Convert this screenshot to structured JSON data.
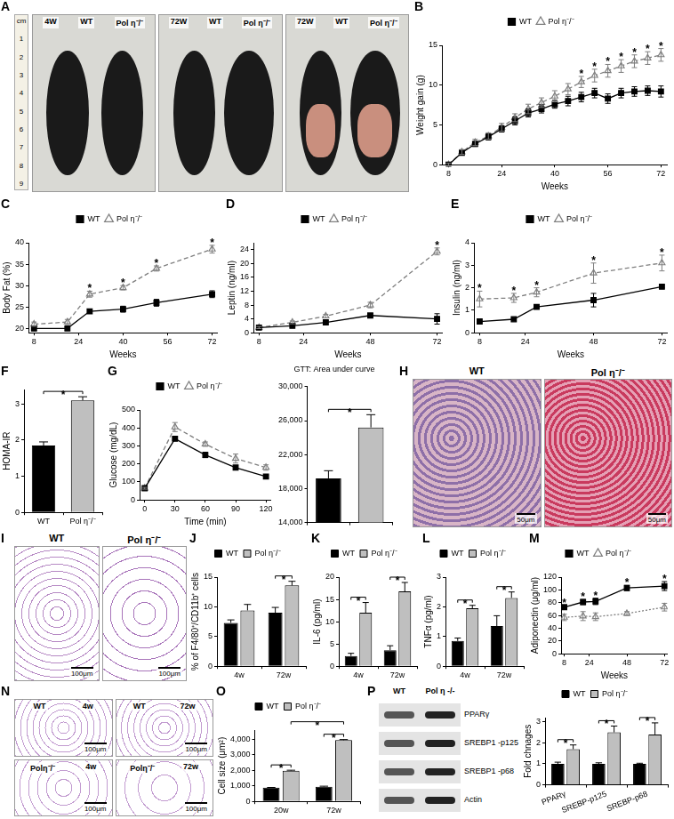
{
  "chart_data": [
    {
      "panel": "B",
      "type": "line",
      "x_label": "Weeks",
      "y_label": "Weight gain (g)",
      "x": [
        8,
        12,
        16,
        20,
        24,
        28,
        32,
        36,
        40,
        44,
        48,
        52,
        56,
        60,
        64,
        68,
        72
      ],
      "series": [
        {
          "name": "WT",
          "color": "#000000",
          "marker": "square",
          "line_style": "solid",
          "values": [
            0,
            1.5,
            2.6,
            3.5,
            4.5,
            5.5,
            6.5,
            7,
            7.6,
            8,
            8.5,
            9,
            8.3,
            9,
            9.2,
            9.3,
            9.2
          ],
          "errors": [
            0.2,
            0.3,
            0.3,
            0.4,
            0.4,
            0.5,
            0.5,
            0.5,
            0.5,
            0.6,
            0.6,
            0.6,
            0.6,
            0.6,
            0.6,
            0.6,
            0.7
          ]
        },
        {
          "name": "Pol η⁻/⁻",
          "color": "#7f7f7f",
          "marker": "triangle",
          "line_style": "dashed",
          "values": [
            0,
            1.6,
            2.8,
            3.6,
            4.7,
            5.9,
            7,
            7.8,
            8.6,
            9.5,
            10.4,
            11.2,
            11.8,
            12.4,
            13,
            13.4,
            13.8
          ],
          "errors": [
            0.2,
            0.3,
            0.4,
            0.4,
            0.5,
            0.5,
            0.6,
            0.6,
            0.7,
            0.7,
            0.7,
            0.8,
            0.8,
            0.8,
            0.8,
            0.8,
            0.8
          ]
        }
      ],
      "xlim": [
        6,
        74
      ],
      "xticks": [
        8,
        24,
        40,
        56,
        72
      ],
      "ylim": [
        0,
        15
      ],
      "yticks": [
        0,
        5,
        10,
        15
      ],
      "grid": false,
      "legend": "top",
      "annotations": [
        {
          "x": 48,
          "text": "*"
        },
        {
          "x": 52,
          "text": "*"
        },
        {
          "x": 56,
          "text": "*"
        },
        {
          "x": 60,
          "text": "*"
        },
        {
          "x": 64,
          "text": "*"
        },
        {
          "x": 68,
          "text": "*"
        },
        {
          "x": 72,
          "text": "*"
        }
      ]
    },
    {
      "panel": "C",
      "type": "line",
      "x_label": "Weeks",
      "y_label": "Body Fat (%)",
      "x": [
        8,
        20,
        28,
        40,
        52,
        72
      ],
      "series": [
        {
          "name": "WT",
          "color": "#000000",
          "marker": "square",
          "line_style": "solid",
          "values": [
            20,
            20,
            24,
            24.5,
            26,
            28
          ],
          "errors": [
            0.5,
            0.4,
            0.5,
            0.7,
            0.8,
            0.8
          ]
        },
        {
          "name": "Pol η⁻/⁻",
          "color": "#7f7f7f",
          "marker": "triangle",
          "line_style": "dashed",
          "values": [
            21,
            21.5,
            28,
            29.5,
            34,
            38.5
          ],
          "errors": [
            0.5,
            0.6,
            0.7,
            0.5,
            0.6,
            0.9
          ]
        }
      ],
      "xlim": [
        6,
        74
      ],
      "xticks": [
        8,
        24,
        40,
        56,
        72
      ],
      "ylim": [
        19,
        40
      ],
      "yticks": [
        20,
        25,
        30,
        35,
        40
      ],
      "grid": false,
      "legend": "top",
      "annotations": [
        {
          "x": 28,
          "text": "*"
        },
        {
          "x": 40,
          "text": "*"
        },
        {
          "x": 52,
          "text": "*"
        },
        {
          "x": 72,
          "text": "*"
        }
      ]
    },
    {
      "panel": "D",
      "type": "line",
      "x_label": "Weeks",
      "y_label": "Leptin (ng/ml)",
      "x": [
        8,
        20,
        32,
        48,
        72
      ],
      "series": [
        {
          "name": "WT",
          "color": "#000000",
          "marker": "square",
          "line_style": "solid",
          "values": [
            1.5,
            2,
            3,
            5,
            4
          ],
          "errors": [
            0.3,
            0.4,
            0.5,
            0.5,
            1.5
          ]
        },
        {
          "name": "Pol η⁻/⁻",
          "color": "#7f7f7f",
          "marker": "triangle",
          "line_style": "dashed",
          "values": [
            1.5,
            3,
            4.8,
            8,
            23.5
          ],
          "errors": [
            0.3,
            0.4,
            0.5,
            0.8,
            1
          ]
        }
      ],
      "xlim": [
        6,
        74
      ],
      "xticks": [
        8,
        24,
        48,
        72
      ],
      "ylim": [
        0,
        26
      ],
      "yticks": [
        0,
        4,
        8,
        12,
        16,
        20,
        24
      ],
      "grid": false,
      "legend": "top",
      "annotations": [
        {
          "x": 72,
          "text": "*"
        }
      ]
    },
    {
      "panel": "E",
      "type": "line",
      "x_label": "Weeks",
      "y_label": "Insulin (ng/ml)",
      "x": [
        8,
        20,
        28,
        48,
        72
      ],
      "series": [
        {
          "name": "WT",
          "color": "#000000",
          "marker": "square",
          "line_style": "solid",
          "values": [
            0.5,
            0.6,
            1.15,
            1.45,
            2.05
          ],
          "errors": [
            0.05,
            0.05,
            0.05,
            0.3,
            0.05
          ]
        },
        {
          "name": "Pol η⁻/⁻",
          "color": "#7f7f7f",
          "marker": "triangle",
          "line_style": "dashed",
          "values": [
            1.5,
            1.55,
            1.8,
            2.65,
            3.1
          ],
          "errors": [
            0.35,
            0.2,
            0.2,
            0.45,
            0.35
          ]
        }
      ],
      "xlim": [
        6,
        74
      ],
      "xticks": [
        8,
        24,
        48,
        72
      ],
      "ylim": [
        0,
        4
      ],
      "yticks": [
        0,
        1,
        2,
        3,
        4
      ],
      "grid": false,
      "legend": "top",
      "annotations": [
        {
          "x": 8,
          "text": "*"
        },
        {
          "x": 20,
          "text": "*"
        },
        {
          "x": 28,
          "text": "*"
        },
        {
          "x": 48,
          "text": "*"
        },
        {
          "x": 72,
          "text": "*"
        }
      ]
    },
    {
      "panel": "F",
      "type": "bar",
      "y_label": "HOMA-IR",
      "categories": [
        "WT",
        "Pol η⁻/⁻"
      ],
      "values": [
        1.85,
        3.1
      ],
      "errors": [
        0.1,
        0.1
      ],
      "colors": [
        "#000000",
        "#bfbfbf"
      ],
      "ylim": [
        0,
        3.4
      ],
      "yticks": [
        0,
        1,
        2,
        3
      ],
      "grid": false,
      "annotations": [
        {
          "text": "*"
        }
      ]
    },
    {
      "panel": "G",
      "type": "line",
      "x_label": "Time (min)",
      "y_label": "Glucose (mg/dL)",
      "x": [
        0,
        30,
        60,
        90,
        120
      ],
      "series": [
        {
          "name": "WT",
          "color": "#000000",
          "marker": "square",
          "line_style": "solid",
          "values": [
            65,
            340,
            250,
            180,
            130
          ],
          "errors": [
            5,
            10,
            15,
            10,
            8
          ]
        },
        {
          "name": "Pol η⁻/⁻",
          "color": "#7f7f7f",
          "marker": "triangle",
          "line_style": "dashed",
          "values": [
            65,
            405,
            310,
            230,
            180
          ],
          "errors": [
            5,
            25,
            12,
            25,
            15
          ]
        }
      ],
      "xlim": [
        -5,
        125
      ],
      "xticks": [
        0,
        30,
        60,
        90,
        120
      ],
      "ylim": [
        0,
        500
      ],
      "yticks": [
        0,
        100,
        200,
        300,
        400,
        500
      ],
      "grid": false,
      "legend": "top"
    },
    {
      "type": "bar",
      "title": "GTT: Area under curve",
      "categories": [
        null,
        null
      ],
      "values": [
        19200,
        25200
      ],
      "errors": [
        900,
        1500
      ],
      "colors": [
        "#000000",
        "#bfbfbf"
      ],
      "ylim": [
        14000,
        30000
      ],
      "yticks": [
        {
          "value": 14000,
          "label": "14,000"
        },
        {
          "value": 18000,
          "label": "18,000"
        },
        {
          "value": 22000,
          "label": "22,000"
        },
        {
          "value": 26000,
          "label": "26,000"
        },
        {
          "value": 30000,
          "label": "30,000"
        }
      ],
      "grid": false,
      "tick_labels": "y",
      "annotations": [
        {
          "text": "*"
        }
      ]
    },
    {
      "panel": "J",
      "type": "bar",
      "y_label": "% of F4/80⁺/CD11b⁺ cells",
      "categories": [
        "4w",
        "72w"
      ],
      "series": [
        {
          "name": "WT",
          "color": "#000000",
          "values": [
            7.3,
            9
          ],
          "errors": [
            0.5,
            0.9
          ]
        },
        {
          "name": "Pol η⁻/⁻",
          "color": "#bfbfbf",
          "values": [
            9.4,
            13.6
          ],
          "errors": [
            1,
            0.7
          ]
        }
      ],
      "ylim": [
        0,
        15
      ],
      "yticks": [
        0,
        5,
        10,
        15
      ],
      "grid": false,
      "legend": "top",
      "annotations": [
        {
          "category": "72w",
          "text": "*"
        }
      ]
    },
    {
      "panel": "K",
      "type": "bar",
      "y_label": "IL-6 (pg/ml)",
      "categories": [
        "4w",
        "72w"
      ],
      "series": [
        {
          "name": "WT",
          "color": "#000000",
          "values": [
            2.3,
            3.6
          ],
          "errors": [
            0.6,
            1
          ]
        },
        {
          "name": "Pol η⁻/⁻",
          "color": "#bfbfbf",
          "values": [
            12,
            16.8
          ],
          "errors": [
            2.3,
            2
          ]
        }
      ],
      "ylim": [
        0,
        20
      ],
      "yticks": [
        0,
        5,
        10,
        15,
        20
      ],
      "grid": false,
      "legend": "top",
      "annotations": [
        {
          "category": "4w",
          "text": "*"
        },
        {
          "category": "72w",
          "text": "*"
        }
      ]
    },
    {
      "panel": "L",
      "type": "bar",
      "y_label": "TNFα (pg/ml)",
      "categories": [
        "4w",
        "72w"
      ],
      "series": [
        {
          "name": "WT",
          "color": "#000000",
          "values": [
            0.85,
            1.35
          ],
          "errors": [
            0.1,
            0.35
          ]
        },
        {
          "name": "Pol η⁻/⁻",
          "color": "#bfbfbf",
          "values": [
            1.95,
            2.3
          ],
          "errors": [
            0.1,
            0.2
          ]
        }
      ],
      "ylim": [
        0,
        3
      ],
      "yticks": [
        0,
        1,
        2,
        3
      ],
      "grid": false,
      "legend": "top",
      "annotations": [
        {
          "category": "4w",
          "text": "*"
        },
        {
          "category": "72w",
          "text": "*"
        }
      ]
    },
    {
      "panel": "M",
      "type": "line",
      "x_label": "Weeks",
      "y_label": "Adiponectin (μg/ml)",
      "x": [
        8,
        20,
        28,
        48,
        72
      ],
      "series": [
        {
          "name": "WT",
          "color": "#000000",
          "marker": "square",
          "line_style": "solid",
          "values": [
            73,
            81,
            82,
            103,
            106
          ],
          "errors": [
            3,
            4,
            5,
            4,
            7
          ]
        },
        {
          "name": "Pol η⁻/⁻",
          "color": "#7f7f7f",
          "marker": "triangle",
          "line_style": "dotted",
          "values": [
            57,
            59,
            58,
            63,
            73
          ],
          "errors": [
            5,
            7,
            6,
            3,
            6
          ]
        }
      ],
      "xlim": [
        6,
        74
      ],
      "xticks": [
        8,
        24,
        48,
        72
      ],
      "ylim": [
        0,
        120
      ],
      "yticks": [
        0,
        20,
        40,
        60,
        80,
        100,
        120
      ],
      "grid": false,
      "legend": "top",
      "annotations": [
        {
          "x": 8,
          "text": "*"
        },
        {
          "x": 20,
          "text": "*"
        },
        {
          "x": 28,
          "text": "*"
        },
        {
          "x": 48,
          "text": "*"
        },
        {
          "x": 72,
          "text": "*"
        }
      ]
    },
    {
      "panel": "O",
      "type": "bar",
      "y_label": "Cell size (μm²)",
      "categories": [
        "20w",
        "72w"
      ],
      "series": [
        {
          "name": "WT",
          "color": "#000000",
          "values": [
            880,
            950
          ],
          "errors": [
            20,
            30
          ]
        },
        {
          "name": "Pol η⁻/⁻",
          "color": "#bfbfbf",
          "values": [
            1980,
            3950
          ],
          "errors": [
            30,
            40
          ]
        }
      ],
      "ylim": [
        0,
        4600
      ],
      "yticks": [
        0,
        {
          "value": 1000,
          "label": "1,000"
        },
        {
          "value": 2000,
          "label": "2,000"
        },
        {
          "value": 3000,
          "label": "3,000"
        },
        {
          "value": 4000,
          "label": "4,000"
        }
      ],
      "grid": false,
      "legend": "top",
      "annotations": [
        {
          "category": "20w",
          "text": "*"
        },
        {
          "category": "72w",
          "text": "*"
        },
        {
          "categories": [
            "20w",
            "72w"
          ],
          "series": "Pol η⁻/⁻",
          "text": "*"
        }
      ]
    },
    {
      "type": "bar",
      "y_label": "Fold chnages",
      "categories": [
        "PPARγ",
        "SREBP-p125",
        "SREBP-p68"
      ],
      "series": [
        {
          "name": "WT",
          "color": "#000000",
          "values": [
            1,
            1,
            1
          ],
          "errors": [
            0.08,
            0.05,
            0.03
          ]
        },
        {
          "name": "Pol η⁻/⁻",
          "color": "#bfbfbf",
          "values": [
            1.7,
            2.5,
            2.4
          ],
          "errors": [
            0.2,
            0.3,
            0.55
          ]
        }
      ],
      "ylim": [
        0,
        3.2
      ],
      "yticks": [
        0,
        1,
        2,
        3
      ],
      "grid": false,
      "legend": "top",
      "annotations": [
        {
          "category": "PPARγ",
          "text": "*"
        },
        {
          "category": "SREBP-p125",
          "text": "*"
        },
        {
          "category": "SREBP-p68",
          "text": "*"
        }
      ]
    }
  ],
  "images": [
    {
      "panel": "A",
      "ruler": {
        "unit": "cm",
        "marks": [
          1,
          2,
          3,
          4,
          5,
          6,
          7,
          8,
          9
        ]
      },
      "photos": [
        {
          "labels": [
            "4W",
            "WT",
            "Pol η⁻/⁻"
          ]
        },
        {
          "labels": [
            "72W",
            "WT",
            "Pol η⁻/⁻"
          ]
        },
        {
          "labels": [
            "72W",
            "WT",
            "Pol η⁻/⁻"
          ]
        }
      ]
    },
    {
      "panel": "H",
      "photos": [
        {
          "title": "WT",
          "scale_bar": "50μm"
        },
        {
          "title": "Pol η⁻/⁻",
          "scale_bar": "50μm"
        }
      ]
    },
    {
      "panel": "I",
      "photos": [
        {
          "title": "WT",
          "scale_bar": "100μm"
        },
        {
          "title": "Pol η⁻/⁻",
          "scale_bar": "100μm"
        }
      ]
    },
    {
      "panel": "N",
      "photos": [
        {
          "labels": [
            "WT",
            "4w"
          ],
          "scale_bar": "100μm"
        },
        {
          "labels": [
            "WT",
            "72w"
          ],
          "scale_bar": "100μm"
        },
        {
          "labels": [
            "Polη⁻/⁻",
            "4w"
          ],
          "scale_bar": "100μm"
        },
        {
          "labels": [
            "Polη⁻/⁻",
            "72w"
          ],
          "scale_bar": "100μm"
        }
      ]
    },
    {
      "panel": "P",
      "lanes": [
        "WT",
        "Pol η -/-"
      ],
      "bands": [
        "PPARγ",
        "SREBP1 -p125",
        "SREBP1 -p68",
        "Actin"
      ]
    }
  ]
}
